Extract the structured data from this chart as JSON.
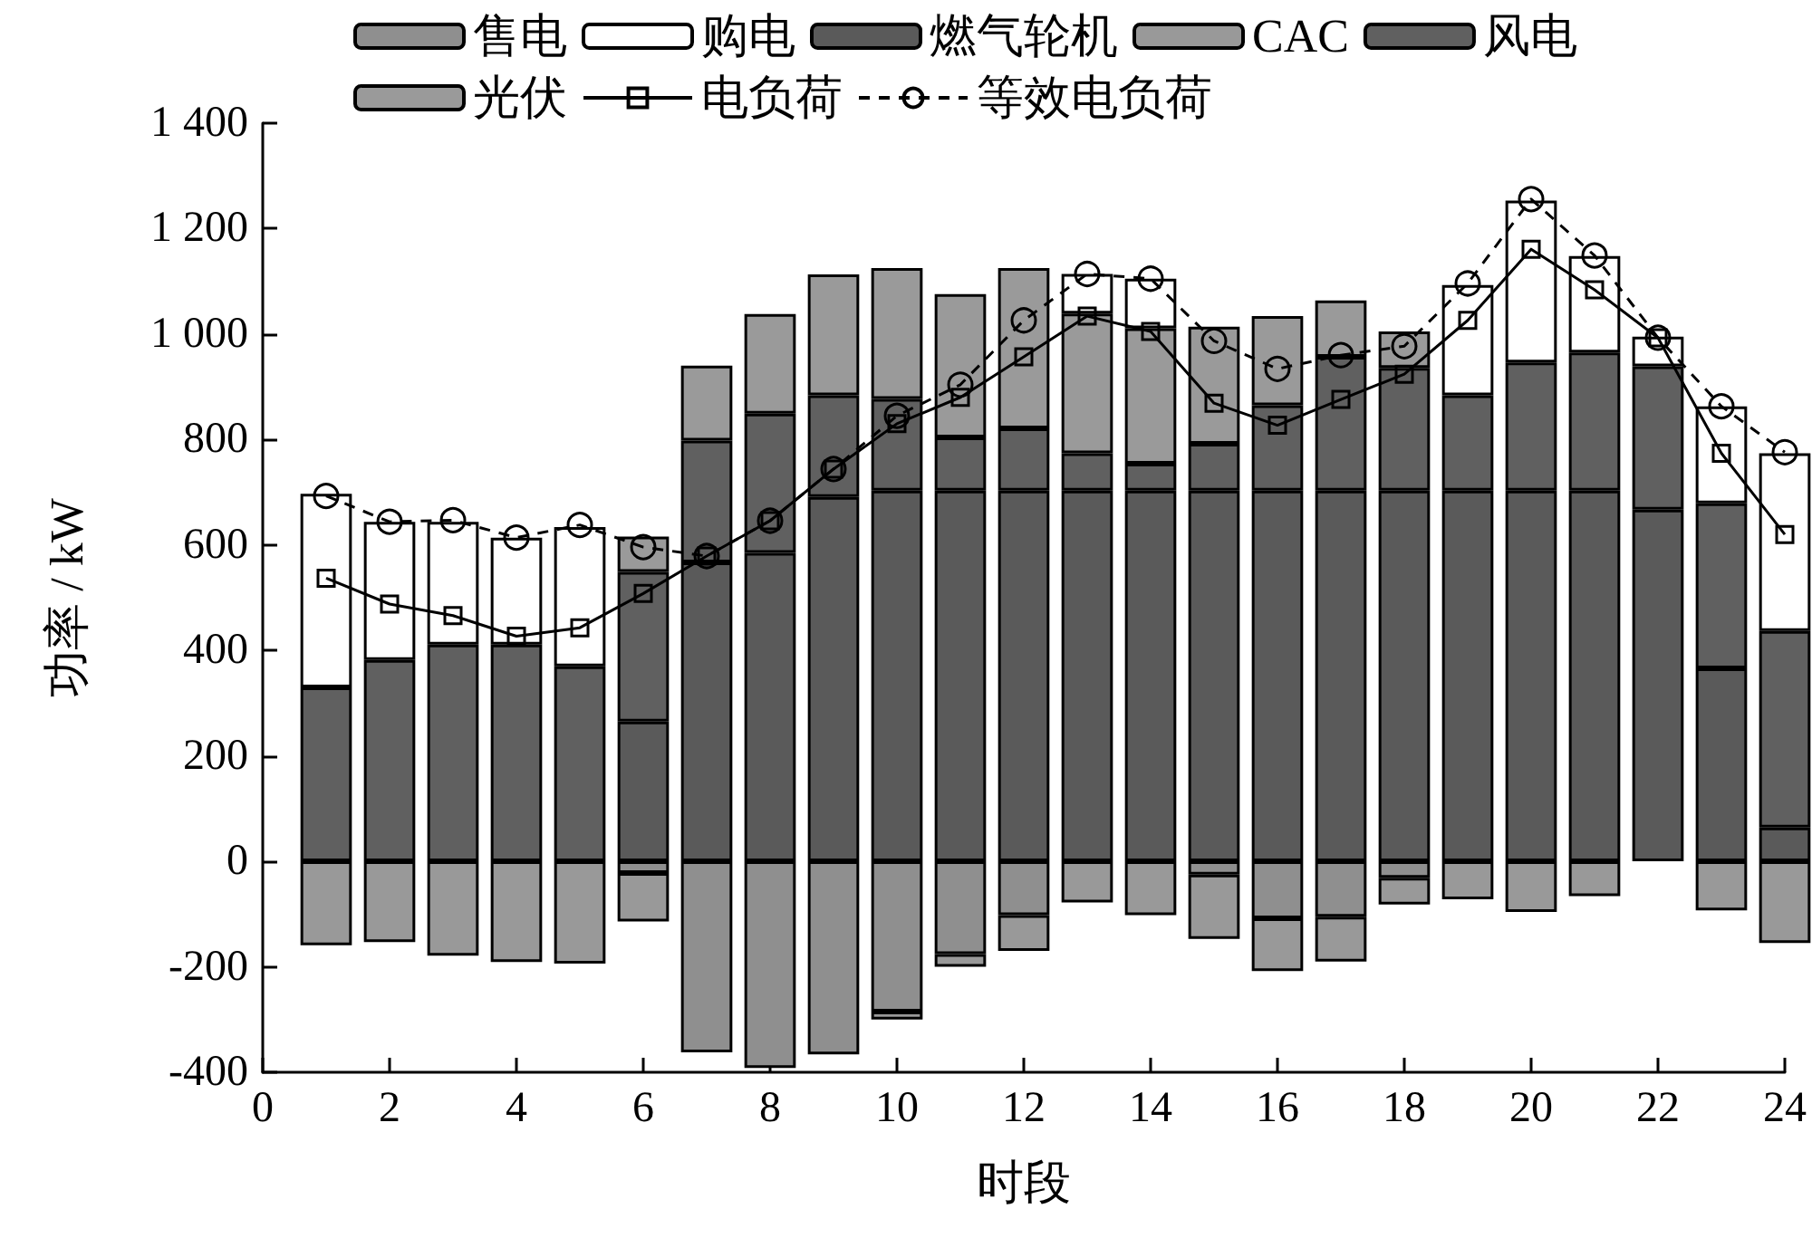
{
  "chart_data": {
    "type": "bar",
    "stacked": true,
    "xlabel": "时段",
    "ylabel": "功率 / kW",
    "x": [
      1,
      2,
      3,
      4,
      5,
      6,
      7,
      8,
      9,
      10,
      11,
      12,
      13,
      14,
      15,
      16,
      17,
      18,
      19,
      20,
      21,
      22,
      23,
      24
    ],
    "xlim": [
      0,
      24
    ],
    "xticks": [
      0,
      2,
      4,
      6,
      8,
      10,
      12,
      14,
      16,
      18,
      20,
      22,
      24
    ],
    "ylim": [
      -400,
      1400
    ],
    "yticks": [
      -400,
      -200,
      0,
      200,
      400,
      600,
      800,
      {
        "value": 1000,
        "label": "1 000"
      },
      {
        "value": 1200,
        "label": "1 200"
      },
      {
        "value": 1400,
        "label": "1 400"
      }
    ],
    "grid": false,
    "legend": "top",
    "series": [
      {
        "name": "燃气轮机",
        "color": "#5a5a5a",
        "values": [
          0,
          0,
          0,
          0,
          0,
          265,
          567,
          585,
          691,
          703,
          703,
          703,
          703,
          703,
          703,
          703,
          703,
          703,
          703,
          703,
          703,
          667,
          366,
          64
        ]
      },
      {
        "name": "风电",
        "color": "#606060",
        "values": [
          330,
          382,
          411,
          411,
          370,
          284,
          231,
          264,
          193,
          174,
          101,
          118,
          71,
          51,
          89,
          162,
          254,
          233,
          181,
          243,
          262,
          272,
          313,
          373
        ]
      },
      {
        "name": "光伏",
        "color": "#9a9a9a",
        "values": [
          0,
          0,
          0,
          0,
          0,
          67,
          142,
          189,
          229,
          248,
          272,
          304,
          265,
          257,
          222,
          169,
          107,
          69,
          0,
          0,
          0,
          0,
          0,
          0
        ]
      },
      {
        "name": "购电",
        "color": "#ffffff",
        "values": [
          367,
          262,
          233,
          203,
          264,
          0,
          0,
          0,
          0,
          0,
          0,
          0,
          75,
          94,
          0,
          0,
          0,
          0,
          209,
          307,
          183,
          56,
          184,
          337
        ]
      },
      {
        "name": "售电",
        "color": "#8f8f8f",
        "values": [
          0,
          0,
          0,
          0,
          0,
          -22,
          -362,
          -392,
          -366,
          -285,
          -176,
          -102,
          0,
          0,
          -25,
          -108,
          -105,
          -31,
          0,
          0,
          0,
          0,
          0,
          0
        ]
      },
      {
        "name": "CAC",
        "color": "#999999",
        "values": [
          -159,
          -153,
          -179,
          -191,
          -194,
          -92,
          0,
          0,
          0,
          -15,
          -24,
          -68,
          -78,
          -102,
          -122,
          -100,
          -85,
          -51,
          -72,
          -96,
          -66,
          0,
          -93,
          -155
        ]
      },
      {
        "name": "电负荷",
        "type": "line",
        "color": "#000000",
        "marker": "square",
        "line_style": "solid",
        "values": [
          537,
          488,
          466,
          427,
          443,
          508,
          579,
          646,
          744,
          830,
          880,
          957,
          1034,
          1005,
          869,
          827,
          876,
          924,
          1026,
          1161,
          1084,
          993,
          774,
          620
        ]
      },
      {
        "name": "等效电负荷",
        "type": "line",
        "color": "#000000",
        "marker": "circle",
        "line_style": "dashed",
        "values": [
          693,
          644,
          647,
          614,
          638,
          596,
          579,
          646,
          744,
          845,
          904,
          1026,
          1114,
          1105,
          987,
          934,
          960,
          977,
          1096,
          1256,
          1149,
          993,
          863,
          776
        ]
      }
    ]
  }
}
